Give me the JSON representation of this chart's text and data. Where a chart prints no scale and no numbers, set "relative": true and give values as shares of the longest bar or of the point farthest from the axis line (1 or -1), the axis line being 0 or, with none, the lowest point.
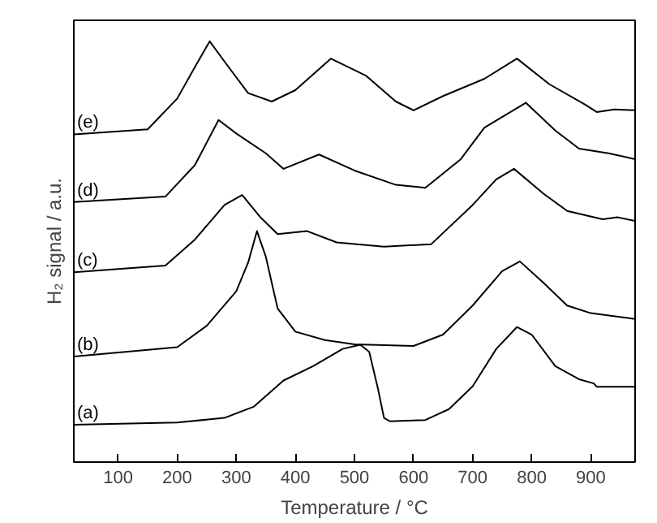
{
  "chart_data": {
    "type": "line",
    "relative": true,
    "xlabel": "Temperature / °C",
    "ylabel": "H₂ signal / a.u.",
    "xlim": [
      25,
      975
    ],
    "xticks": [
      100,
      200,
      300,
      400,
      500,
      600,
      700,
      800,
      900
    ],
    "grid": false,
    "legend": false,
    "marker": "none",
    "line_style": "solid",
    "series": [
      {
        "name": "(a)",
        "color": "#000000",
        "x": [
          25,
          200,
          280,
          330,
          380,
          430,
          480,
          510,
          525,
          540,
          550,
          560,
          620,
          660,
          700,
          740,
          775,
          800,
          840,
          880,
          905,
          910,
          975
        ],
        "values": [
          0.089,
          0.094,
          0.105,
          0.132,
          0.194,
          0.228,
          0.269,
          0.279,
          0.262,
          0.173,
          0.105,
          0.097,
          0.1,
          0.126,
          0.18,
          0.269,
          0.321,
          0.303,
          0.228,
          0.197,
          0.187,
          0.179,
          0.179
        ]
      },
      {
        "name": "(b)",
        "color": "#000000",
        "x": [
          25,
          200,
          250,
          300,
          320,
          335,
          350,
          370,
          400,
          450,
          500,
          600,
          650,
          700,
          750,
          780,
          820,
          860,
          900,
          975
        ],
        "values": [
          0.251,
          0.273,
          0.324,
          0.406,
          0.474,
          0.549,
          0.488,
          0.365,
          0.31,
          0.29,
          0.28,
          0.276,
          0.303,
          0.372,
          0.454,
          0.477,
          0.426,
          0.372,
          0.354,
          0.34
        ]
      },
      {
        "name": "(c)",
        "color": "#000000",
        "x": [
          25,
          180,
          230,
          280,
          310,
          340,
          370,
          420,
          470,
          550,
          630,
          700,
          740,
          770,
          820,
          860,
          920,
          945,
          975
        ],
        "values": [
          0.451,
          0.467,
          0.529,
          0.611,
          0.635,
          0.583,
          0.542,
          0.549,
          0.522,
          0.512,
          0.518,
          0.611,
          0.672,
          0.697,
          0.638,
          0.597,
          0.577,
          0.582,
          0.573
        ]
      },
      {
        "name": "(d)",
        "color": "#000000",
        "x": [
          25,
          180,
          230,
          270,
          300,
          350,
          380,
          440,
          500,
          570,
          620,
          680,
          720,
          790,
          840,
          880,
          930,
          975
        ],
        "values": [
          0.618,
          0.631,
          0.706,
          0.813,
          0.781,
          0.734,
          0.697,
          0.731,
          0.693,
          0.659,
          0.652,
          0.72,
          0.795,
          0.854,
          0.788,
          0.745,
          0.734,
          0.72
        ]
      },
      {
        "name": "(e)",
        "color": "#000000",
        "x": [
          25,
          150,
          200,
          230,
          255,
          280,
          320,
          360,
          400,
          460,
          520,
          570,
          600,
          650,
          720,
          775,
          830,
          890,
          910,
          940,
          975
        ],
        "values": [
          0.779,
          0.791,
          0.864,
          0.939,
          1.0,
          0.952,
          0.877,
          0.857,
          0.884,
          0.959,
          0.918,
          0.857,
          0.836,
          0.87,
          0.911,
          0.959,
          0.898,
          0.85,
          0.832,
          0.838,
          0.836
        ]
      }
    ]
  }
}
